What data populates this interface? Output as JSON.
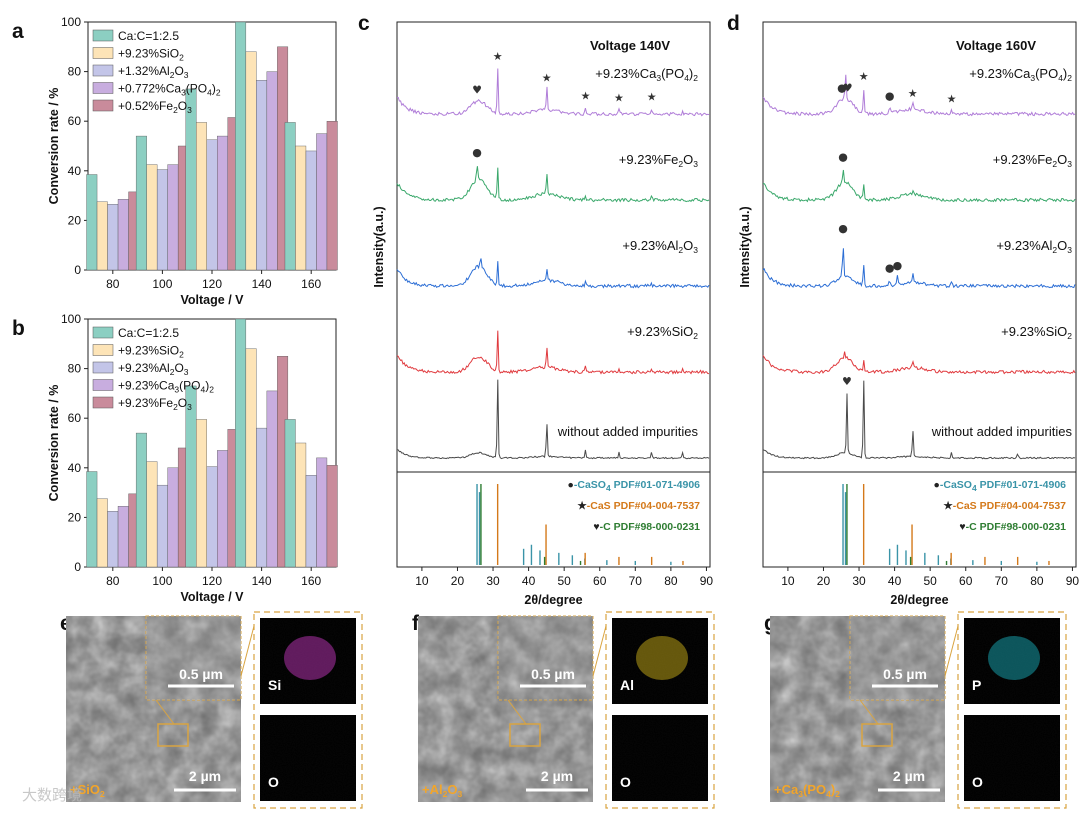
{
  "watermark": "大数跨境",
  "colors": {
    "series": [
      "#8ccfc2",
      "#fde4b7",
      "#c3c5e8",
      "#c8addf",
      "#c98b9b"
    ],
    "xrd": [
      "#4a4a4a",
      "#e03a3e",
      "#2c6ed5",
      "#3aa86b",
      "#b07dd8"
    ],
    "caso4": "#3a94a8",
    "cas": "#d4791a",
    "c": "#2e7d32",
    "sem_frame": "#d9a441",
    "Si": "#d43ccf",
    "Al": "#e0c21a",
    "P": "#1bbcc9",
    "O": "#22c42a"
  },
  "chart_data": [
    {
      "panel": "a",
      "type": "bar",
      "categories": [
        "80",
        "100",
        "120",
        "140",
        "160"
      ],
      "xlabel": "Voltage / V",
      "ylabel": "Conversion rate / %",
      "ylim": [
        0,
        100
      ],
      "yticks": [
        "0",
        "20",
        "40",
        "60",
        "80",
        "100"
      ],
      "series": [
        {
          "name": "Ca:C=1:2.5",
          "name_parts": [
            "Ca:C=1:2.5"
          ],
          "values": [
            38.5,
            54,
            73,
            100,
            59.5
          ]
        },
        {
          "name": "+9.23%SiO2",
          "name_parts": [
            "+9.23",
            "%",
            "SiO",
            "2",
            ""
          ],
          "values": [
            27.5,
            42.5,
            59.5,
            88,
            50
          ]
        },
        {
          "name": "+1.32%Al2O3",
          "name_parts": [
            "+1.32",
            "%",
            "Al",
            "2",
            "O",
            "3",
            ""
          ],
          "values": [
            26.5,
            40.5,
            52.5,
            76.5,
            48
          ]
        },
        {
          "name": "+0.772%Ca3(PO4)2",
          "name_parts": [
            "+0.772",
            "%",
            "Ca",
            "3",
            "(PO",
            "4",
            ")",
            "2"
          ],
          "values": [
            28.5,
            42.5,
            54,
            80,
            55
          ]
        },
        {
          "name": "+0.52%Fe2O3",
          "name_parts": [
            "+0.52",
            "%",
            "Fe",
            "2",
            "O",
            "3"
          ],
          "values": [
            31.5,
            50,
            61.5,
            90,
            60
          ]
        }
      ]
    },
    {
      "panel": "b",
      "type": "bar",
      "categories": [
        "80",
        "100",
        "120",
        "140",
        "160"
      ],
      "xlabel": "Voltage / V",
      "ylabel": "Conversion rate / %",
      "ylim": [
        0,
        100
      ],
      "yticks": [
        "0",
        "20",
        "40",
        "60",
        "80",
        "100"
      ],
      "series": [
        {
          "name": "Ca:C=1:2.5",
          "name_parts": [
            "Ca:C=1:2.5"
          ],
          "values": [
            38.5,
            54,
            73,
            100,
            59.5
          ]
        },
        {
          "name": "+9.23%SiO2",
          "name_parts": [
            "+9.23",
            "%",
            "SiO",
            "2",
            ""
          ],
          "values": [
            27.5,
            42.5,
            59.5,
            88,
            50
          ]
        },
        {
          "name": "+9.23%Al2O3",
          "name_parts": [
            "+9.23",
            "%",
            "Al",
            "2",
            "O",
            "3",
            ""
          ],
          "values": [
            22.5,
            33,
            40.5,
            56,
            37
          ]
        },
        {
          "name": "+9.23%Ca3(PO4)2",
          "name_parts": [
            "+9.23",
            "%",
            "Ca",
            "3",
            "(PO",
            "4",
            ")",
            "2"
          ],
          "values": [
            24.5,
            40,
            47,
            71,
            44
          ]
        },
        {
          "name": "+9.23%Fe2O3",
          "name_parts": [
            "+9.23",
            "%",
            "Fe",
            "2",
            "O",
            "3"
          ],
          "values": [
            29.5,
            48,
            55.5,
            85,
            41
          ]
        }
      ]
    },
    {
      "panel": "c",
      "type": "line",
      "title": "Voltage 140V",
      "xlabel": "2θ/degree",
      "ylabel": "Intensity(a.u.)",
      "xlim": [
        3,
        91
      ],
      "xticks": [
        "10",
        "20",
        "30",
        "40",
        "50",
        "60",
        "70",
        "80",
        "90"
      ],
      "series": [
        {
          "name": "without added impurities",
          "name_parts": [
            "without added impurities"
          ],
          "hump": 0.2,
          "peaks": [
            [
              31.3,
              1.0
            ],
            [
              45.1,
              0.45
            ],
            [
              56,
              0.1
            ],
            [
              65.4,
              0.08
            ],
            [
              74.6,
              0.08
            ],
            [
              83.3,
              0.06
            ]
          ]
        },
        {
          "name": "+9.23%SiO2",
          "name_parts": [
            "+9.23%SiO",
            "2",
            ""
          ],
          "hump": 0.6,
          "peaks": [
            [
              31.3,
              0.95
            ],
            [
              45.1,
              0.5
            ],
            [
              56,
              0.12
            ],
            [
              65.4,
              0.1
            ],
            [
              74.6,
              0.1
            ],
            [
              83.3,
              0.08
            ]
          ]
        },
        {
          "name": "+9.23%Al2O3",
          "name_parts": [
            "+9.23%Al",
            "2",
            "O",
            "3",
            ""
          ],
          "hump": 0.75,
          "peaks": [
            [
              26.5,
              0.3
            ],
            [
              31.3,
              0.55
            ],
            [
              45.1,
              0.3
            ],
            [
              56,
              0.08
            ],
            [
              74.6,
              0.05
            ]
          ]
        },
        {
          "name": "+9.23%Fe2O3",
          "name_parts": [
            "+9.23%Fe",
            "2",
            "O",
            "3",
            ""
          ],
          "hump": 0.8,
          "peaks": [
            [
              25.5,
              0.35
            ],
            [
              31.3,
              0.7
            ],
            [
              45.1,
              0.45
            ],
            [
              56,
              0.12
            ],
            [
              74.6,
              0.1
            ]
          ]
        },
        {
          "name": "+9.23%Ca3(PO4)2",
          "name_parts": [
            "+9.23%Ca",
            "3",
            "(PO",
            "4",
            ")",
            "2"
          ],
          "hump": 0.5,
          "peaks": [
            [
              31.3,
              1.0
            ],
            [
              45.1,
              0.55
            ],
            [
              56,
              0.15
            ],
            [
              65.4,
              0.1
            ],
            [
              74.6,
              0.12
            ],
            [
              83.3,
              0.08
            ]
          ]
        }
      ],
      "markers": [
        {
          "series": 4,
          "x": 25.5,
          "type": "heart"
        },
        {
          "series": 4,
          "x": 31.3,
          "type": "star"
        },
        {
          "series": 4,
          "x": 45.1,
          "type": "star"
        },
        {
          "series": 4,
          "x": 56,
          "type": "star"
        },
        {
          "series": 4,
          "x": 65.4,
          "type": "star"
        },
        {
          "series": 4,
          "x": 74.6,
          "type": "star"
        },
        {
          "series": 3,
          "x": 25.5,
          "type": "dot"
        }
      ],
      "references": [
        {
          "phase": "CaSO4",
          "label_parts": [
            "-CaSO",
            "4",
            " PDF#01-071-4906"
          ],
          "symbol": "●",
          "lines": [
            [
              25.5,
              1.0
            ],
            [
              26.2,
              0.9
            ],
            [
              38.6,
              0.2
            ],
            [
              40.8,
              0.25
            ],
            [
              43.2,
              0.18
            ],
            [
              48.5,
              0.15
            ],
            [
              52.3,
              0.12
            ],
            [
              55.8,
              0.08
            ],
            [
              62,
              0.06
            ],
            [
              70,
              0.05
            ],
            [
              80,
              0.04
            ]
          ]
        },
        {
          "phase": "CaS",
          "label_parts": [
            "-CaS PDF#04-004-7537"
          ],
          "symbol": "★",
          "lines": [
            [
              31.3,
              1.0
            ],
            [
              44.9,
              0.5
            ],
            [
              55.9,
              0.15
            ],
            [
              65.4,
              0.1
            ],
            [
              74.6,
              0.1
            ],
            [
              83.4,
              0.05
            ]
          ]
        },
        {
          "phase": "C",
          "label_parts": [
            "-C  PDF#98-000-0231"
          ],
          "symbol": "♥",
          "lines": [
            [
              26.6,
              1.0
            ],
            [
              44.5,
              0.1
            ],
            [
              54.6,
              0.05
            ]
          ]
        }
      ]
    },
    {
      "panel": "d",
      "type": "line",
      "title": "Voltage 160V",
      "xlabel": "2θ/degree",
      "ylabel": "Intensity(a.u.)",
      "xlim": [
        3,
        91
      ],
      "xticks": [
        "10",
        "20",
        "30",
        "40",
        "50",
        "60",
        "70",
        "80",
        "90"
      ],
      "series": [
        {
          "name": "without added impurities",
          "name_parts": [
            "without added impurities"
          ],
          "hump": 0.2,
          "peaks": [
            [
              26.6,
              0.75
            ],
            [
              31.3,
              1.0
            ],
            [
              45.1,
              0.35
            ],
            [
              56,
              0.08
            ],
            [
              74.6,
              0.06
            ]
          ]
        },
        {
          "name": "+9.23%SiO2",
          "name_parts": [
            "+9.23%SiO",
            "2",
            ""
          ],
          "hump": 0.55,
          "peaks": [
            [
              26,
              0.15
            ],
            [
              31.3,
              0.25
            ],
            [
              45.1,
              0.15
            ]
          ]
        },
        {
          "name": "+9.23%Al2O3",
          "name_parts": [
            "+9.23%Al",
            "2",
            "O",
            "3",
            ""
          ],
          "hump": 0.4,
          "peaks": [
            [
              25.5,
              0.8
            ],
            [
              31.3,
              0.45
            ],
            [
              38.6,
              0.15
            ],
            [
              40.8,
              0.2
            ],
            [
              45.1,
              0.25
            ],
            [
              56,
              0.1
            ]
          ]
        },
        {
          "name": "+9.23%Fe2O3",
          "name_parts": [
            "+9.23%Fe",
            "2",
            "O",
            "3",
            ""
          ],
          "hump": 0.7,
          "peaks": [
            [
              25.5,
              0.3
            ],
            [
              31.3,
              0.3
            ],
            [
              45.1,
              0.12
            ]
          ]
        },
        {
          "name": "+9.23%Ca3(PO4)2",
          "name_parts": [
            "+9.23%Ca",
            "3",
            "(PO",
            "4",
            ")",
            "2"
          ],
          "hump": 0.6,
          "peaks": [
            [
              26.2,
              0.6
            ],
            [
              31.3,
              0.55
            ],
            [
              38.6,
              0.15
            ],
            [
              45.1,
              0.2
            ],
            [
              56,
              0.08
            ]
          ]
        }
      ],
      "markers": [
        {
          "series": 4,
          "x": 25.2,
          "type": "dot"
        },
        {
          "series": 4,
          "x": 26.8,
          "type": "heart"
        },
        {
          "series": 4,
          "x": 31.3,
          "type": "star"
        },
        {
          "series": 4,
          "x": 38.6,
          "type": "dot"
        },
        {
          "series": 4,
          "x": 45.1,
          "type": "star"
        },
        {
          "series": 4,
          "x": 56,
          "type": "star"
        },
        {
          "series": 3,
          "x": 25.5,
          "type": "dot"
        },
        {
          "series": 2,
          "x": 25.5,
          "type": "dot"
        },
        {
          "series": 2,
          "x": 38.6,
          "type": "dot"
        },
        {
          "series": 2,
          "x": 40.8,
          "type": "dot"
        },
        {
          "series": 0,
          "x": 26.6,
          "type": "heart"
        }
      ],
      "references": [
        {
          "phase": "CaSO4",
          "label_parts": [
            "-CaSO",
            "4",
            " PDF#01-071-4906"
          ],
          "symbol": "●",
          "lines": [
            [
              25.5,
              1.0
            ],
            [
              26.2,
              0.9
            ],
            [
              38.6,
              0.2
            ],
            [
              40.8,
              0.25
            ],
            [
              43.2,
              0.18
            ],
            [
              48.5,
              0.15
            ],
            [
              52.3,
              0.12
            ],
            [
              55.8,
              0.08
            ],
            [
              62,
              0.06
            ],
            [
              70,
              0.05
            ],
            [
              80,
              0.04
            ]
          ]
        },
        {
          "phase": "CaS",
          "label_parts": [
            "-CaS PDF#04-004-7537"
          ],
          "symbol": "★",
          "lines": [
            [
              31.3,
              1.0
            ],
            [
              44.9,
              0.5
            ],
            [
              55.9,
              0.15
            ],
            [
              65.4,
              0.1
            ],
            [
              74.6,
              0.1
            ],
            [
              83.4,
              0.05
            ]
          ]
        },
        {
          "phase": "C",
          "label_parts": [
            "-C  PDF#98-000-0231"
          ],
          "symbol": "♥",
          "lines": [
            [
              26.6,
              1.0
            ],
            [
              44.5,
              0.1
            ],
            [
              54.6,
              0.05
            ]
          ]
        }
      ]
    }
  ],
  "sem": [
    {
      "panel": "e",
      "inset_scale": "0.5 µm",
      "main_scale": "2 µm",
      "label_parts": [
        "+SiO",
        "2"
      ],
      "maps": [
        {
          "element": "Si",
          "color": "#d43ccf"
        },
        {
          "element": "O",
          "color": "#22c42a"
        }
      ]
    },
    {
      "panel": "f",
      "inset_scale": "0.5 µm",
      "main_scale": "2 µm",
      "label_parts": [
        "+Al",
        "2",
        "O",
        "3"
      ],
      "maps": [
        {
          "element": "Al",
          "color": "#e0c21a"
        },
        {
          "element": "O",
          "color": "#22c42a"
        }
      ]
    },
    {
      "panel": "g",
      "inset_scale": "0.5 µm",
      "main_scale": "2 µm",
      "label_parts": [
        "+Ca",
        "3",
        "(PO",
        "4",
        ")",
        "2"
      ],
      "maps": [
        {
          "element": "P",
          "color": "#1bbcc9"
        },
        {
          "element": "O",
          "color": "#22c42a"
        }
      ]
    }
  ]
}
